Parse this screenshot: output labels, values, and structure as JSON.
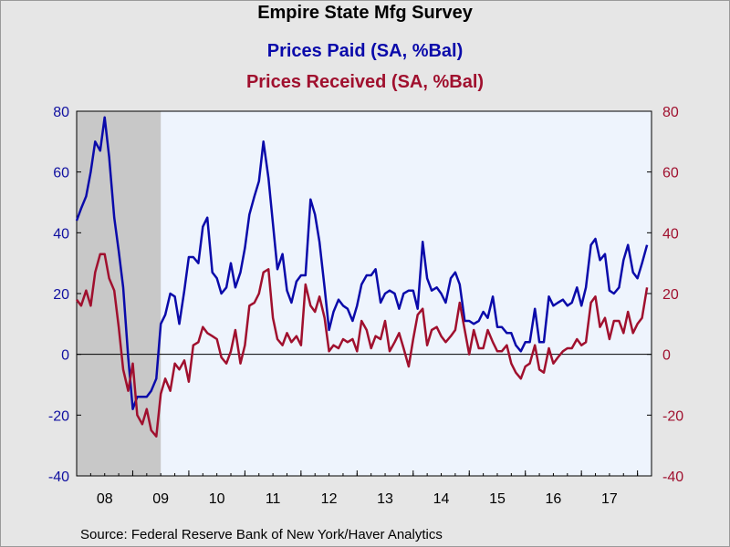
{
  "header": {
    "title": "Empire State Mfg Survey",
    "series1_title": "Prices Paid (SA, %Bal)",
    "series2_title": "Prices Received (SA, %Bal)"
  },
  "footer": {
    "source": "Source:  Federal Reserve Bank of New York/Haver Analytics"
  },
  "colors": {
    "prices_paid": "#0a0aaa",
    "prices_received": "#a0102e",
    "plot_background": "#eef4fd",
    "recession_shade": "#c8c8c8"
  },
  "chart_data": {
    "type": "line",
    "title": "Empire State Mfg Survey",
    "xlabel": "",
    "ylabel": "",
    "ylim": [
      -40,
      80
    ],
    "y_ticks": [
      "80",
      "60",
      "40",
      "20",
      "0",
      "-20",
      "-40"
    ],
    "x_ticks": [
      "08",
      "09",
      "10",
      "11",
      "12",
      "13",
      "14",
      "15",
      "16",
      "17"
    ],
    "x_range": [
      "2008-01",
      "2017-12"
    ],
    "recession_shading": {
      "start": "2008-01",
      "end": "2009-06"
    },
    "grid": false,
    "zero_line": true,
    "legend": "top-center",
    "series": [
      {
        "name": "Prices Paid (SA, %Bal)",
        "axis": "left",
        "values": [
          [
            2008.0,
            44
          ],
          [
            2008.08,
            48
          ],
          [
            2008.17,
            52
          ],
          [
            2008.25,
            60
          ],
          [
            2008.33,
            70
          ],
          [
            2008.42,
            67
          ],
          [
            2008.5,
            78
          ],
          [
            2008.58,
            65
          ],
          [
            2008.67,
            45
          ],
          [
            2008.75,
            34
          ],
          [
            2008.83,
            22
          ],
          [
            2008.92,
            -1
          ],
          [
            2009.0,
            -18
          ],
          [
            2009.08,
            -14
          ],
          [
            2009.17,
            -14
          ],
          [
            2009.25,
            -14
          ],
          [
            2009.33,
            -12
          ],
          [
            2009.42,
            -8
          ],
          [
            2009.5,
            10
          ],
          [
            2009.58,
            13
          ],
          [
            2009.67,
            20
          ],
          [
            2009.75,
            19
          ],
          [
            2009.83,
            10
          ],
          [
            2009.92,
            21
          ],
          [
            2010.0,
            32
          ],
          [
            2010.08,
            32
          ],
          [
            2010.17,
            30
          ],
          [
            2010.25,
            42
          ],
          [
            2010.33,
            45
          ],
          [
            2010.42,
            27
          ],
          [
            2010.5,
            25
          ],
          [
            2010.58,
            20
          ],
          [
            2010.67,
            22
          ],
          [
            2010.75,
            30
          ],
          [
            2010.83,
            22
          ],
          [
            2010.92,
            27
          ],
          [
            2011.0,
            35
          ],
          [
            2011.08,
            46
          ],
          [
            2011.17,
            52
          ],
          [
            2011.25,
            57
          ],
          [
            2011.33,
            70
          ],
          [
            2011.42,
            58
          ],
          [
            2011.5,
            43
          ],
          [
            2011.58,
            28
          ],
          [
            2011.67,
            33
          ],
          [
            2011.75,
            21
          ],
          [
            2011.83,
            17
          ],
          [
            2011.92,
            24
          ],
          [
            2012.0,
            26
          ],
          [
            2012.08,
            26
          ],
          [
            2012.17,
            51
          ],
          [
            2012.25,
            46
          ],
          [
            2012.33,
            37
          ],
          [
            2012.42,
            22
          ],
          [
            2012.5,
            8
          ],
          [
            2012.58,
            14
          ],
          [
            2012.67,
            18
          ],
          [
            2012.75,
            16
          ],
          [
            2012.83,
            15
          ],
          [
            2012.92,
            11
          ],
          [
            2013.0,
            16
          ],
          [
            2013.08,
            23
          ],
          [
            2013.17,
            26
          ],
          [
            2013.25,
            26
          ],
          [
            2013.33,
            28
          ],
          [
            2013.42,
            17
          ],
          [
            2013.5,
            20
          ],
          [
            2013.58,
            21
          ],
          [
            2013.67,
            20
          ],
          [
            2013.75,
            15
          ],
          [
            2013.83,
            20
          ],
          [
            2013.92,
            21
          ],
          [
            2014.0,
            21
          ],
          [
            2014.08,
            15
          ],
          [
            2014.17,
            37
          ],
          [
            2014.25,
            25
          ],
          [
            2014.33,
            21
          ],
          [
            2014.42,
            22
          ],
          [
            2014.5,
            20
          ],
          [
            2014.58,
            17
          ],
          [
            2014.67,
            25
          ],
          [
            2014.75,
            27
          ],
          [
            2014.83,
            23
          ],
          [
            2014.92,
            11
          ],
          [
            2015.0,
            11
          ],
          [
            2015.08,
            10
          ],
          [
            2015.17,
            11
          ],
          [
            2015.25,
            14
          ],
          [
            2015.33,
            12
          ],
          [
            2015.42,
            19
          ],
          [
            2015.5,
            9
          ],
          [
            2015.58,
            9
          ],
          [
            2015.67,
            7
          ],
          [
            2015.75,
            7
          ],
          [
            2015.83,
            3
          ],
          [
            2015.92,
            1
          ],
          [
            2016.0,
            4
          ],
          [
            2016.08,
            4
          ],
          [
            2016.17,
            15
          ],
          [
            2016.25,
            4
          ],
          [
            2016.33,
            4
          ],
          [
            2016.42,
            19
          ],
          [
            2016.5,
            16
          ],
          [
            2016.58,
            17
          ],
          [
            2016.67,
            18
          ],
          [
            2016.75,
            16
          ],
          [
            2016.83,
            17
          ],
          [
            2016.92,
            22
          ],
          [
            2017.0,
            16
          ],
          [
            2017.08,
            22
          ],
          [
            2017.17,
            36
          ],
          [
            2017.25,
            38
          ],
          [
            2017.33,
            31
          ],
          [
            2017.42,
            33
          ],
          [
            2017.5,
            21
          ],
          [
            2017.58,
            20
          ],
          [
            2017.67,
            22
          ],
          [
            2017.75,
            31
          ],
          [
            2017.83,
            36
          ],
          [
            2017.92,
            27
          ],
          [
            2018.0,
            25
          ],
          [
            2018.08,
            30
          ],
          [
            2018.17,
            36
          ]
        ]
      },
      {
        "name": "Prices Received (SA, %Bal)",
        "axis": "right",
        "values": [
          [
            2008.0,
            18
          ],
          [
            2008.08,
            16
          ],
          [
            2008.17,
            21
          ],
          [
            2008.25,
            16
          ],
          [
            2008.33,
            27
          ],
          [
            2008.42,
            33
          ],
          [
            2008.5,
            33
          ],
          [
            2008.58,
            25
          ],
          [
            2008.67,
            21
          ],
          [
            2008.75,
            9
          ],
          [
            2008.83,
            -5
          ],
          [
            2008.92,
            -12
          ],
          [
            2009.0,
            -3
          ],
          [
            2009.08,
            -20
          ],
          [
            2009.17,
            -23
          ],
          [
            2009.25,
            -18
          ],
          [
            2009.33,
            -25
          ],
          [
            2009.42,
            -27
          ],
          [
            2009.5,
            -13
          ],
          [
            2009.58,
            -8
          ],
          [
            2009.67,
            -12
          ],
          [
            2009.75,
            -3
          ],
          [
            2009.83,
            -5
          ],
          [
            2009.92,
            -2
          ],
          [
            2010.0,
            -9
          ],
          [
            2010.08,
            3
          ],
          [
            2010.17,
            4
          ],
          [
            2010.25,
            9
          ],
          [
            2010.33,
            7
          ],
          [
            2010.42,
            6
          ],
          [
            2010.5,
            5
          ],
          [
            2010.58,
            -1
          ],
          [
            2010.67,
            -3
          ],
          [
            2010.75,
            1
          ],
          [
            2010.83,
            8
          ],
          [
            2010.92,
            -3
          ],
          [
            2011.0,
            3
          ],
          [
            2011.08,
            16
          ],
          [
            2011.17,
            17
          ],
          [
            2011.25,
            20
          ],
          [
            2011.33,
            27
          ],
          [
            2011.42,
            28
          ],
          [
            2011.5,
            12
          ],
          [
            2011.58,
            5
          ],
          [
            2011.67,
            3
          ],
          [
            2011.75,
            7
          ],
          [
            2011.83,
            4
          ],
          [
            2011.92,
            6
          ],
          [
            2012.0,
            3
          ],
          [
            2012.08,
            23
          ],
          [
            2012.17,
            16
          ],
          [
            2012.25,
            14
          ],
          [
            2012.33,
            19
          ],
          [
            2012.42,
            12
          ],
          [
            2012.5,
            1
          ],
          [
            2012.58,
            3
          ],
          [
            2012.67,
            2
          ],
          [
            2012.75,
            5
          ],
          [
            2012.83,
            4
          ],
          [
            2012.92,
            5
          ],
          [
            2013.0,
            1
          ],
          [
            2013.08,
            11
          ],
          [
            2013.17,
            8
          ],
          [
            2013.25,
            2
          ],
          [
            2013.33,
            6
          ],
          [
            2013.42,
            5
          ],
          [
            2013.5,
            11
          ],
          [
            2013.58,
            1
          ],
          [
            2013.67,
            4
          ],
          [
            2013.75,
            7
          ],
          [
            2013.83,
            2
          ],
          [
            2013.92,
            -4
          ],
          [
            2014.0,
            5
          ],
          [
            2014.08,
            13
          ],
          [
            2014.17,
            15
          ],
          [
            2014.25,
            3
          ],
          [
            2014.33,
            8
          ],
          [
            2014.42,
            9
          ],
          [
            2014.5,
            6
          ],
          [
            2014.58,
            4
          ],
          [
            2014.67,
            6
          ],
          [
            2014.75,
            8
          ],
          [
            2014.83,
            17
          ],
          [
            2014.92,
            8
          ],
          [
            2015.0,
            0
          ],
          [
            2015.08,
            8
          ],
          [
            2015.17,
            2
          ],
          [
            2015.25,
            2
          ],
          [
            2015.33,
            8
          ],
          [
            2015.42,
            4
          ],
          [
            2015.5,
            1
          ],
          [
            2015.58,
            1
          ],
          [
            2015.67,
            3
          ],
          [
            2015.75,
            -3
          ],
          [
            2015.83,
            -6
          ],
          [
            2015.92,
            -8
          ],
          [
            2016.0,
            -4
          ],
          [
            2016.08,
            -3
          ],
          [
            2016.17,
            3
          ],
          [
            2016.25,
            -5
          ],
          [
            2016.33,
            -6
          ],
          [
            2016.42,
            2
          ],
          [
            2016.5,
            -3
          ],
          [
            2016.58,
            -1
          ],
          [
            2016.67,
            1
          ],
          [
            2016.75,
            2
          ],
          [
            2016.83,
            2
          ],
          [
            2016.92,
            5
          ],
          [
            2017.0,
            3
          ],
          [
            2017.08,
            4
          ],
          [
            2017.17,
            17
          ],
          [
            2017.25,
            19
          ],
          [
            2017.33,
            9
          ],
          [
            2017.42,
            12
          ],
          [
            2017.5,
            5
          ],
          [
            2017.58,
            11
          ],
          [
            2017.67,
            11
          ],
          [
            2017.75,
            7
          ],
          [
            2017.83,
            14
          ],
          [
            2017.92,
            7
          ],
          [
            2018.0,
            10
          ],
          [
            2018.08,
            12
          ],
          [
            2018.17,
            22
          ]
        ]
      }
    ]
  }
}
